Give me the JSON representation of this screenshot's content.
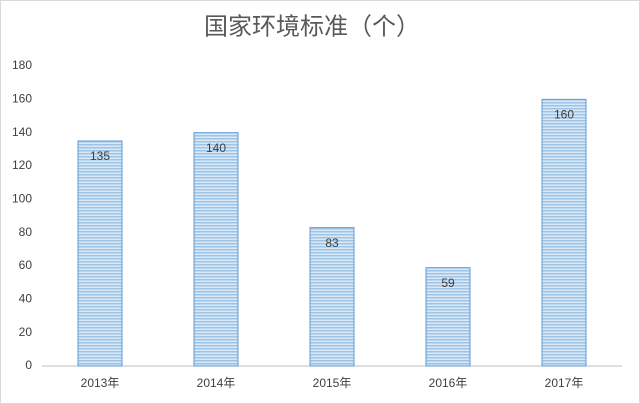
{
  "chart_data": {
    "type": "bar",
    "title": "国家环境标准（个）",
    "categories": [
      "2013年",
      "2014年",
      "2015年",
      "2016年",
      "2017年"
    ],
    "values": [
      135,
      140,
      83,
      59,
      160
    ],
    "color": "#9dc3e6",
    "edge_color": "#5b9bd5",
    "ylim": [
      0,
      180
    ],
    "yticks": [
      0,
      20,
      40,
      60,
      80,
      100,
      120,
      140,
      160,
      180
    ],
    "grid": false
  }
}
